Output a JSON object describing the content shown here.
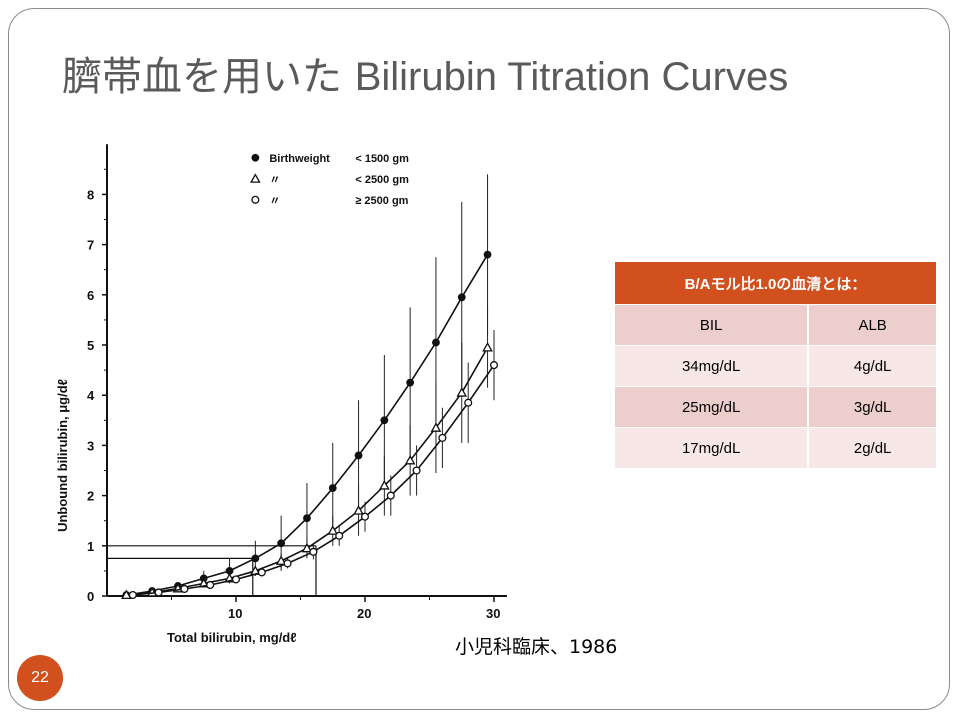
{
  "slide": {
    "title_jp": "臍帯血を用いた",
    "title_en": "Bilirubin Titration Curves",
    "source": "小児科臨床、1986",
    "page_number": "22",
    "accent_color": "#d24f1e"
  },
  "table": {
    "header": "B/Aモル比1.0の血清とは：",
    "columns": [
      "BIL",
      "ALB"
    ],
    "rows": [
      [
        "34mg/dL",
        "4g/dL"
      ],
      [
        "25mg/dL",
        "3g/dL"
      ],
      [
        "17mg/dL",
        "2g/dL"
      ]
    ]
  },
  "chart_data": {
    "type": "line",
    "xlabel": "Total bilirubin, mg/dℓ",
    "ylabel": "Unbound bilirubin, μg/dℓ",
    "xlim": [
      0,
      31
    ],
    "ylim": [
      0,
      9
    ],
    "xticks": [
      10,
      20,
      30
    ],
    "xtick_labels": [
      "10",
      "20",
      "30"
    ],
    "yticks": [
      0,
      1,
      2,
      3,
      4,
      5,
      6,
      7,
      8
    ],
    "ytick_labels": [
      "0",
      "1",
      "2",
      "3",
      "4",
      "5",
      "6",
      "7",
      "8"
    ],
    "legend": {
      "position": "top-left",
      "entries": [
        {
          "marker": "filled-circle",
          "prefix": "Birthweight",
          "condition": "< 1500 gm"
        },
        {
          "marker": "open-triangle",
          "prefix": "〃",
          "condition": "< 2500 gm"
        },
        {
          "marker": "open-circle",
          "prefix": "〃",
          "condition": "≥ 2500 gm"
        }
      ]
    },
    "reference_lines": [
      {
        "y": 1.0,
        "x_end": 16.2
      },
      {
        "y": 0.75,
        "x_end": 11.3
      }
    ],
    "series": [
      {
        "name": "Birthweight < 1500 gm",
        "marker": "filled-circle",
        "x": [
          1.5,
          3.5,
          5.5,
          7.5,
          9.5,
          11.5,
          13.5,
          15.5,
          17.5,
          19.5,
          21.5,
          23.5,
          25.5,
          27.5,
          29.5
        ],
        "y": [
          0.02,
          0.1,
          0.2,
          0.35,
          0.5,
          0.75,
          1.05,
          1.55,
          2.15,
          2.8,
          3.5,
          4.25,
          5.05,
          5.95,
          6.8
        ],
        "err": [
          0,
          0,
          0,
          0.15,
          0.25,
          0.35,
          0.55,
          0.7,
          0.9,
          1.1,
          1.3,
          1.5,
          1.7,
          1.9,
          1.6
        ]
      },
      {
        "name": "Birthweight < 2500 gm",
        "marker": "open-triangle",
        "x": [
          1.5,
          3.5,
          5.5,
          7.5,
          9.5,
          11.5,
          13.5,
          15.5,
          17.5,
          19.5,
          21.5,
          23.5,
          25.5,
          27.5,
          29.5
        ],
        "y": [
          0.02,
          0.07,
          0.15,
          0.25,
          0.35,
          0.5,
          0.7,
          0.95,
          1.3,
          1.7,
          2.2,
          2.7,
          3.35,
          4.05,
          4.95
        ],
        "err": [
          0,
          0,
          0,
          0,
          0.05,
          0.1,
          0.15,
          0.2,
          0.3,
          0.5,
          0.6,
          0.7,
          0.9,
          1.0,
          0.8
        ]
      },
      {
        "name": "Birthweight ≥ 2500 gm",
        "marker": "open-circle",
        "x": [
          2.0,
          4.0,
          6.0,
          8.0,
          10.0,
          12.0,
          14.0,
          16.0,
          18.0,
          20.0,
          22.0,
          24.0,
          26.0,
          28.0,
          30.0
        ],
        "y": [
          0.02,
          0.07,
          0.14,
          0.22,
          0.33,
          0.47,
          0.65,
          0.88,
          1.2,
          1.58,
          2.0,
          2.5,
          3.15,
          3.85,
          4.6
        ],
        "err": [
          0,
          0,
          0,
          0,
          0,
          0.05,
          0.1,
          0.15,
          0.2,
          0.3,
          0.4,
          0.5,
          0.6,
          0.8,
          0.7
        ]
      }
    ]
  }
}
